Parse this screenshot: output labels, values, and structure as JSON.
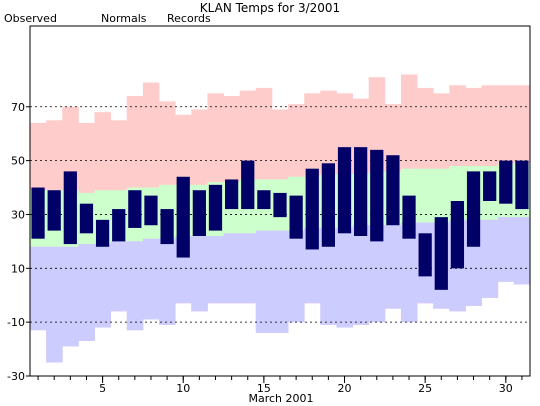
{
  "chart_data": {
    "type": "bar",
    "title": "KLAN Temps for 3/2001",
    "xlabel": "March 2001",
    "ylabel": "",
    "ylim": [
      -30,
      100
    ],
    "xlim": [
      0.5,
      31.5
    ],
    "grid": "dashed horizontal at labeled ticks",
    "legend_placement": "top-left",
    "y_ticks": [
      -30,
      -10,
      10,
      30,
      50,
      70
    ],
    "x_ticks": [
      5,
      10,
      15,
      20,
      25,
      30
    ],
    "days": [
      1,
      2,
      3,
      4,
      5,
      6,
      7,
      8,
      9,
      10,
      11,
      12,
      13,
      14,
      15,
      16,
      17,
      18,
      19,
      20,
      21,
      22,
      23,
      24,
      25,
      26,
      27,
      28,
      29,
      30,
      31
    ],
    "series": [
      {
        "name": "Records",
        "color": "#ffcccc",
        "high": [
          64,
          65,
          70,
          64,
          68,
          65,
          74,
          79,
          72,
          67,
          69,
          75,
          74,
          76,
          77,
          69,
          71,
          75,
          76,
          75,
          73,
          81,
          71,
          82,
          77,
          75,
          78,
          77,
          78,
          78,
          78
        ],
        "low": [
          -13,
          -25,
          -19,
          -17,
          -12,
          -6,
          -13,
          -9,
          -11,
          -3,
          -6,
          -3,
          -3,
          -3,
          -14,
          -14,
          -10,
          -3,
          -11,
          -12,
          -11,
          -10,
          -5,
          -10,
          -3,
          -5,
          -6,
          -4,
          -1,
          5,
          4
        ]
      },
      {
        "name": "Normals",
        "color": "#ccffcc",
        "high": [
          39,
          39,
          39,
          38,
          39,
          39,
          40,
          40,
          41,
          41,
          41,
          42,
          42,
          43,
          43,
          43,
          44,
          44,
          45,
          45,
          45,
          46,
          46,
          47,
          47,
          47,
          48,
          48,
          48,
          49,
          49
        ],
        "low": [
          18,
          18,
          18,
          19,
          19,
          20,
          20,
          21,
          21,
          22,
          22,
          22,
          23,
          23,
          24,
          24,
          24,
          25,
          25,
          25,
          26,
          26,
          26,
          27,
          27,
          27,
          28,
          28,
          28,
          29,
          29
        ]
      },
      {
        "name": "Observed",
        "color": "#000066",
        "high": [
          40,
          39,
          46,
          34,
          28,
          32,
          39,
          37,
          32,
          44,
          39,
          41,
          43,
          50,
          39,
          38,
          37,
          47,
          49,
          55,
          55,
          54,
          52,
          37,
          23,
          29,
          35,
          46,
          46,
          50,
          50
        ],
        "low": [
          21,
          24,
          19,
          23,
          18,
          20,
          25,
          26,
          19,
          14,
          22,
          24,
          32,
          32,
          32,
          29,
          21,
          17,
          18,
          23,
          22,
          20,
          26,
          21,
          7,
          2,
          10,
          18,
          35,
          34,
          32
        ]
      }
    ]
  }
}
